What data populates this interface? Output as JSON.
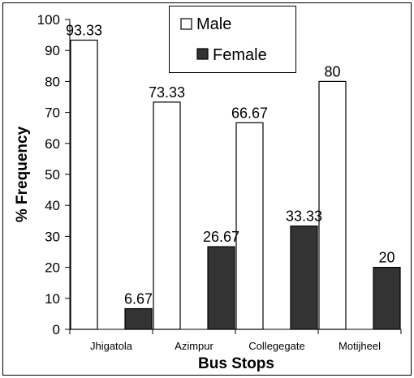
{
  "chart_data": {
    "type": "bar",
    "categories": [
      "Jhigatola",
      "Azimpur",
      "Collegegate",
      "Motijheel"
    ],
    "series": [
      {
        "name": "Male",
        "values": [
          93.33,
          73.33,
          66.67,
          80
        ],
        "labels": [
          "93.33",
          "73.33",
          "66.67",
          "80"
        ],
        "color": "#ffffff"
      },
      {
        "name": "Female",
        "values": [
          6.67,
          26.67,
          33.33,
          20
        ],
        "labels": [
          "6.67",
          "26.67",
          "33.33",
          "20"
        ],
        "color": "#333333"
      }
    ],
    "xlabel": "Bus Stops",
    "ylabel": "% Frequency",
    "ylim": [
      0,
      100
    ],
    "yticks": [
      "0",
      "10",
      "20",
      "30",
      "40",
      "50",
      "60",
      "70",
      "80",
      "90",
      "100"
    ],
    "grid": false,
    "legend": "top-center"
  }
}
